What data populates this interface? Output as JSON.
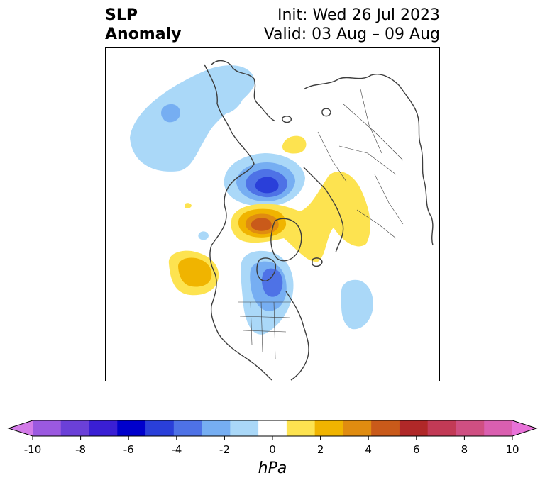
{
  "title": {
    "left_line1": "SLP",
    "left_line2": "Anomaly",
    "right_line1": "Init: Wed 26 Jul 2023",
    "right_line2": "Valid: 03 Aug – 09 Aug"
  },
  "colorbar": {
    "unit": "hPa",
    "tick_labels": [
      "-10",
      "-8",
      "-6",
      "-4",
      "-2",
      "0",
      "2",
      "4",
      "6",
      "8",
      "10"
    ],
    "colors": [
      "#d37be8",
      "#9b59e0",
      "#6b40d8",
      "#3a1fd4",
      "#0000cc",
      "#2a3fd9",
      "#4e72e6",
      "#76aef2",
      "#aad8f8",
      "#ffffff",
      "#fde350",
      "#f0b400",
      "#e08c10",
      "#c95a1a",
      "#b02828",
      "#c23a56",
      "#cf4f82",
      "#da5fb0",
      "#e872d8"
    ],
    "extend": "both"
  },
  "map": {
    "projection": "north-polar stereographic",
    "anomaly_colors": {
      "light_blue": "#aad8f8",
      "medium_blue": "#76aef2",
      "blue": "#4e72e6",
      "dark_blue": "#2a3fd9",
      "light_yellow": "#fde350",
      "yellow": "#f0b400",
      "orange": "#e08c10",
      "red_orange": "#c95a1a"
    }
  }
}
